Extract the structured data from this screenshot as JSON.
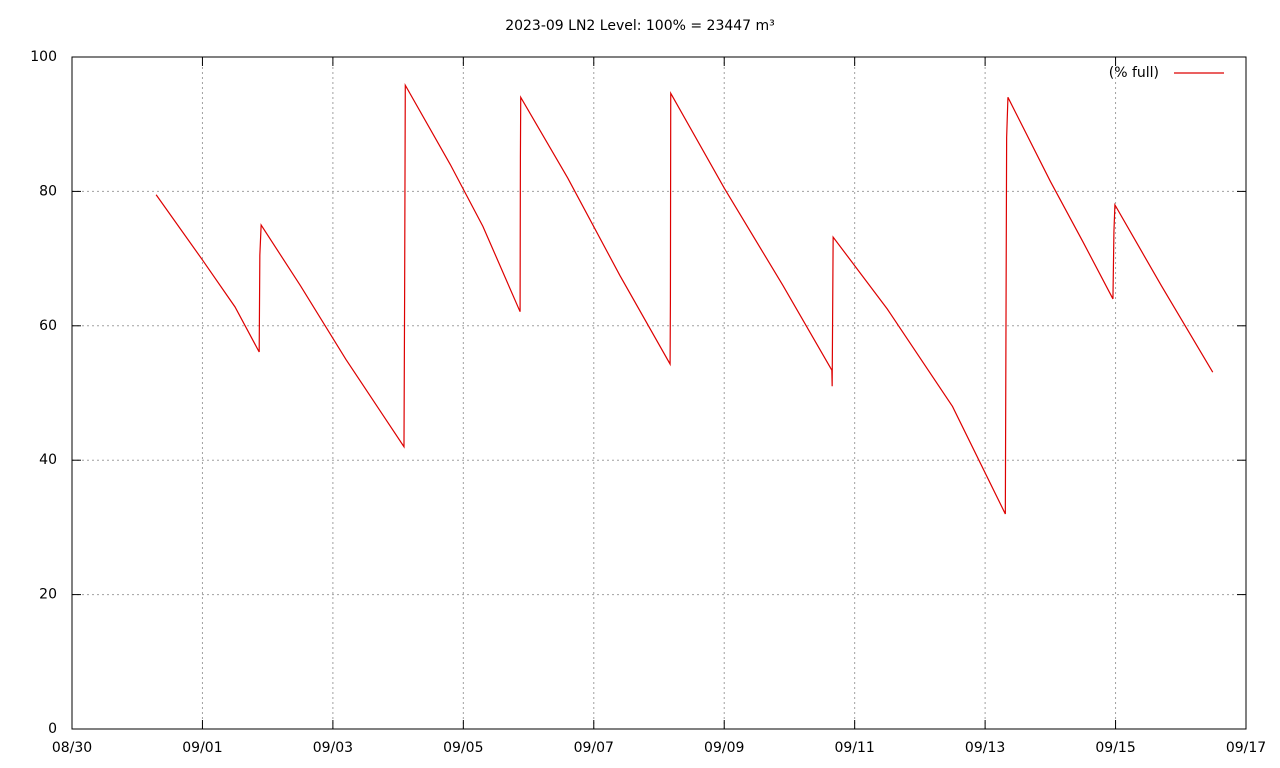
{
  "chart_data": {
    "type": "line",
    "title": "2023-09 LN2 Level: 100% = 23447 m³",
    "x": [
      1.29,
      2.0,
      2.5,
      2.87,
      2.88,
      2.9,
      3.5,
      4.2,
      5.09,
      5.1,
      5.11,
      5.8,
      6.3,
      6.87,
      6.875,
      6.88,
      7.6,
      8.4,
      9.17,
      9.175,
      9.18,
      10.0,
      10.9,
      11.65,
      11.655,
      11.67,
      12.5,
      13.5,
      14.31,
      14.33,
      14.35,
      15.0,
      15.5,
      15.96,
      15.975,
      15.99,
      16.7,
      17.49
    ],
    "series": [
      {
        "name": "(% full)",
        "color": "#dd0000",
        "values": [
          79.5,
          69.8,
          62.8,
          56.1,
          70.5,
          75.0,
          66.0,
          55.0,
          42.0,
          65.0,
          95.8,
          84.0,
          74.8,
          62.1,
          85.0,
          94.0,
          82.0,
          67.5,
          54.3,
          64.0,
          94.6,
          80.5,
          66.0,
          53.4,
          51.0,
          73.2,
          62.5,
          48.0,
          32.0,
          88.0,
          94.0,
          81.5,
          72.5,
          64.0,
          74.0,
          78.0,
          66.0,
          53.1
        ]
      }
    ],
    "xlim": [
      0,
      18
    ],
    "xticks": [
      {
        "value": 0,
        "label": "08/30"
      },
      {
        "value": 2,
        "label": "09/01"
      },
      {
        "value": 4,
        "label": "09/03"
      },
      {
        "value": 6,
        "label": "09/05"
      },
      {
        "value": 8,
        "label": "09/07"
      },
      {
        "value": 10,
        "label": "09/09"
      },
      {
        "value": 12,
        "label": "09/11"
      },
      {
        "value": 14,
        "label": "09/13"
      },
      {
        "value": 16,
        "label": "09/15"
      },
      {
        "value": 18,
        "label": "09/17"
      }
    ],
    "ylim": [
      0,
      100
    ],
    "yticks": [
      0,
      20,
      40,
      60,
      80,
      100
    ],
    "grid": true,
    "legend": "top-right"
  }
}
